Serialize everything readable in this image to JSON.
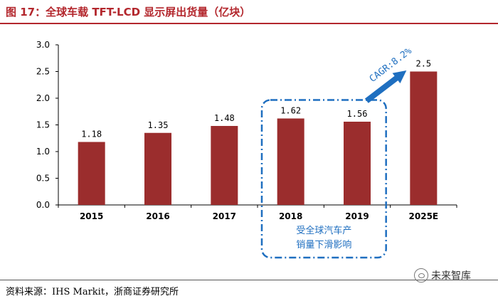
{
  "header": {
    "title": "图 17：全球车载 TFT-LCD 显示屏出货量（亿块）"
  },
  "chart_data": {
    "type": "bar",
    "title": "全球车载 TFT-LCD 显示屏出货量（亿块）",
    "xlabel": "",
    "ylabel": "",
    "categories": [
      "2015",
      "2016",
      "2017",
      "2018",
      "2019",
      "2025E"
    ],
    "values": [
      1.18,
      1.35,
      1.48,
      1.62,
      1.56,
      2.5
    ],
    "data_labels": [
      "1.18",
      "1.35",
      "1.48",
      "1.62",
      "1.56",
      "2.5"
    ],
    "ylim": [
      0,
      3.0
    ],
    "yticks": [
      "0.0",
      "0.5",
      "1.0",
      "1.5",
      "2.0",
      "2.5",
      "3.0"
    ],
    "grid": false,
    "bar_color": "#9b2d2d",
    "annotations": {
      "cagr_label": "CAGR:8.2%",
      "highlight_lines": [
        "受全球汽车产",
        "销量下滑影响"
      ],
      "highlight_categories": [
        "2018",
        "2019"
      ],
      "accent_color": "#1f6fc0"
    }
  },
  "footer": {
    "source": "资料来源：IHS Markit，浙商证券研究所",
    "watermark": "未来智库"
  }
}
